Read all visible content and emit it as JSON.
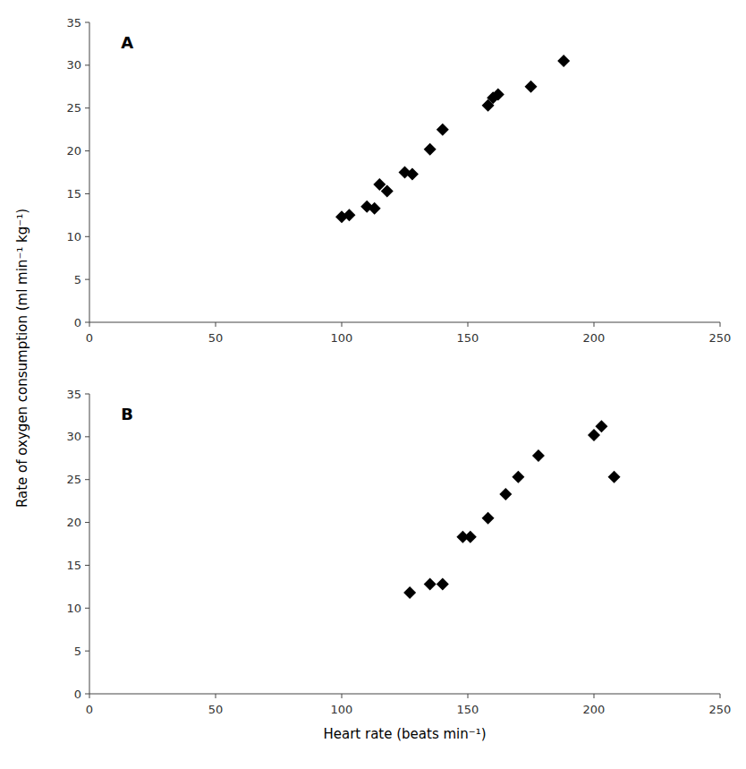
{
  "chart_data": [
    {
      "type": "scatter",
      "title": "A",
      "ylabel": "Rate of oxygen consumption (ml min⁻¹ kg⁻¹)",
      "x": [
        100,
        103,
        110,
        113,
        115,
        118,
        125,
        128,
        135,
        140,
        158,
        160,
        162,
        175,
        188
      ],
      "values": [
        12.3,
        12.5,
        13.5,
        13.3,
        16.1,
        15.3,
        17.5,
        17.3,
        20.2,
        22.5,
        25.3,
        26.2,
        26.6,
        27.5,
        30.5
      ],
      "xlim": [
        0,
        250
      ],
      "ylim": [
        0,
        35
      ],
      "xticks": [
        0,
        50,
        100,
        150,
        200,
        250
      ],
      "yticks": [
        0,
        5,
        10,
        15,
        20,
        25,
        30,
        35
      ],
      "marker": "diamond",
      "color": "#000000",
      "grid": false
    },
    {
      "type": "scatter",
      "title": "B",
      "xlabel": "Heart rate (beats min⁻¹)",
      "x": [
        127,
        135,
        140,
        148,
        151,
        158,
        165,
        170,
        178,
        200,
        203,
        208
      ],
      "values": [
        11.8,
        12.8,
        12.8,
        18.3,
        18.3,
        20.5,
        23.3,
        25.3,
        27.8,
        30.2,
        31.2,
        25.3
      ],
      "xlim": [
        0,
        250
      ],
      "ylim": [
        0,
        35
      ],
      "xticks": [
        0,
        50,
        100,
        150,
        200,
        250
      ],
      "yticks": [
        0,
        5,
        10,
        15,
        20,
        25,
        30,
        35
      ],
      "marker": "diamond",
      "color": "#000000",
      "grid": false
    }
  ]
}
